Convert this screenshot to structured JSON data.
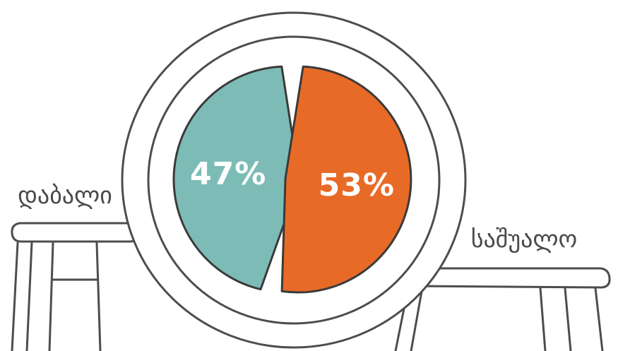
{
  "chart_data": {
    "type": "pie",
    "categories": [
      "დაბალი",
      "საშუალო"
    ],
    "values": [
      47,
      53
    ],
    "value_labels": [
      "47%",
      "53%"
    ],
    "colors": [
      "#7dbcb6",
      "#e86a27"
    ]
  }
}
